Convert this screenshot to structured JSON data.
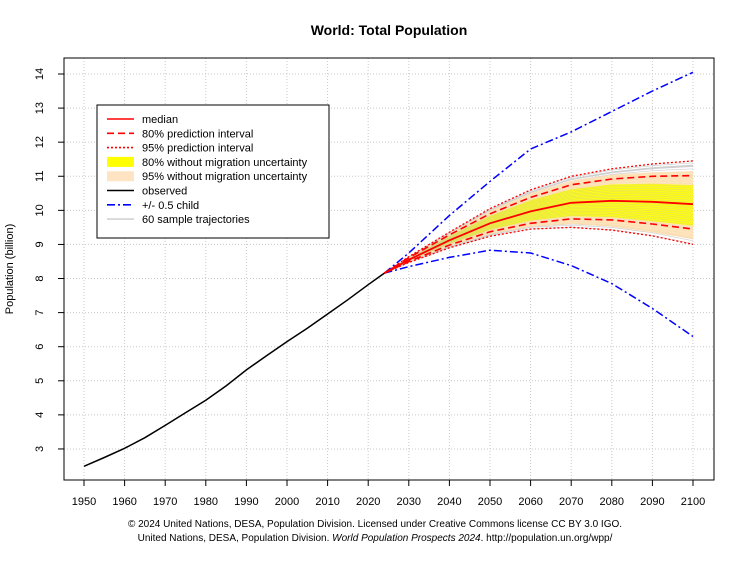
{
  "chart_data": {
    "type": "line",
    "title": "World: Total Population",
    "ylabel": "Population (billion)",
    "xlabel": "",
    "xlim": [
      1950,
      2100
    ],
    "ylim": [
      2,
      14.5
    ],
    "x_ticks": [
      1950,
      1960,
      1970,
      1980,
      1990,
      2000,
      2010,
      2020,
      2030,
      2040,
      2050,
      2060,
      2070,
      2080,
      2090,
      2100
    ],
    "y_ticks": [
      3,
      4,
      5,
      6,
      7,
      8,
      9,
      10,
      11,
      12,
      13,
      14
    ],
    "grid": true,
    "legend_position": "top-left",
    "legend": [
      {
        "label": "median",
        "style": "solid",
        "color": "#ff0000"
      },
      {
        "label": "80% prediction interval",
        "style": "dashed",
        "color": "#ff0000"
      },
      {
        "label": "95% prediction interval",
        "style": "dotted",
        "color": "#ff0000"
      },
      {
        "label": "80% without migration uncertainty",
        "style": "band",
        "color": "#ffff00"
      },
      {
        "label": "95% without migration uncertainty",
        "style": "band",
        "color": "#ffe4c4"
      },
      {
        "label": "observed",
        "style": "solid",
        "color": "#000000"
      },
      {
        "label": "+/- 0.5 child",
        "style": "dashdot",
        "color": "#0000ff"
      },
      {
        "label": "60 sample trajectories",
        "style": "solid",
        "color": "#d3d3d3"
      }
    ],
    "observed": {
      "x": [
        1950,
        1955,
        1960,
        1965,
        1970,
        1975,
        1980,
        1985,
        1990,
        1995,
        2000,
        2005,
        2010,
        2015,
        2020,
        2024
      ],
      "y": [
        2.49,
        2.75,
        3.02,
        3.33,
        3.69,
        4.06,
        4.43,
        4.85,
        5.32,
        5.74,
        6.15,
        6.54,
        6.96,
        7.38,
        7.82,
        8.16
      ]
    },
    "projection_x": [
      2024,
      2030,
      2040,
      2050,
      2060,
      2070,
      2080,
      2090,
      2100
    ],
    "median": [
      8.16,
      8.55,
      9.12,
      9.62,
      9.97,
      10.22,
      10.28,
      10.25,
      10.18
    ],
    "pi80_upper": [
      8.16,
      8.61,
      9.28,
      9.9,
      10.38,
      10.75,
      10.92,
      11.0,
      11.02
    ],
    "pi80_lower": [
      8.16,
      8.5,
      8.98,
      9.37,
      9.62,
      9.75,
      9.72,
      9.6,
      9.45
    ],
    "pi95_upper": [
      8.16,
      8.64,
      9.36,
      10.05,
      10.6,
      11.0,
      11.22,
      11.36,
      11.45
    ],
    "pi95_lower": [
      8.16,
      8.47,
      8.9,
      9.24,
      9.45,
      9.5,
      9.42,
      9.25,
      9.0
    ],
    "band80_nomig_upper": [
      8.16,
      8.59,
      9.24,
      9.84,
      10.3,
      10.62,
      10.76,
      10.78,
      10.74
    ],
    "band80_nomig_lower": [
      8.16,
      8.52,
      9.02,
      9.43,
      9.7,
      9.83,
      9.8,
      9.68,
      9.55
    ],
    "band95_nomig_upper": [
      8.16,
      8.62,
      9.32,
      9.99,
      10.5,
      10.87,
      11.05,
      11.12,
      11.15
    ],
    "band95_nomig_lower": [
      8.16,
      8.49,
      8.94,
      9.3,
      9.52,
      9.6,
      9.52,
      9.35,
      9.15
    ],
    "plus_half_child": [
      8.16,
      8.75,
      9.85,
      10.85,
      11.8,
      12.3,
      12.9,
      13.5,
      14.05
    ],
    "minus_half_child": [
      8.16,
      8.35,
      8.62,
      8.83,
      8.75,
      8.38,
      7.85,
      7.12,
      6.3
    ],
    "sample_trajectories_count": 60
  },
  "footer": {
    "line1": "© 2024 United Nations, DESA, Population Division. Licensed under Creative Commons license CC BY 3.0 IGO.",
    "line2_prefix": "United Nations, DESA, Population Division.",
    "line2_italic": "World Population Prospects 2024",
    "line2_suffix": ". http://population.un.org/wpp/"
  }
}
